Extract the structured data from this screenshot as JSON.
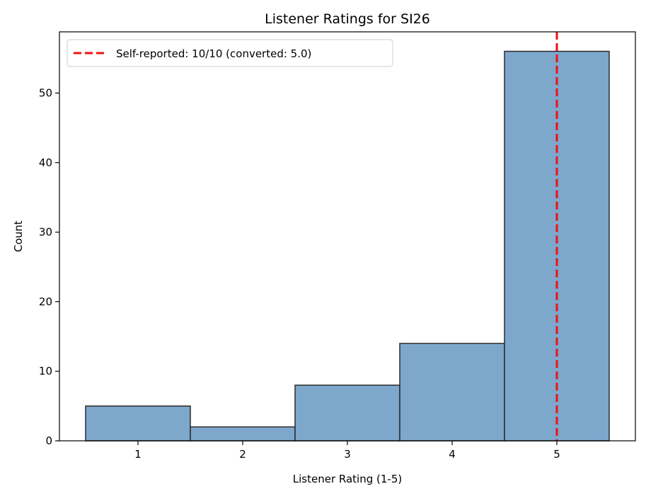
{
  "chart_data": {
    "type": "bar",
    "title": "Listener Ratings for SI26",
    "xlabel": "Listener Rating (1-5)",
    "ylabel": "Count",
    "categories": [
      1,
      2,
      3,
      4,
      5
    ],
    "values": [
      5,
      2,
      8,
      14,
      56
    ],
    "xlim": [
      0.25,
      5.75
    ],
    "ylim": [
      0,
      58.8
    ],
    "xticks": [
      "1",
      "2",
      "3",
      "4",
      "5"
    ],
    "yticks": [
      "0",
      "10",
      "20",
      "30",
      "40",
      "50"
    ],
    "bar_color": "#7ea7cc",
    "bar_edge_color": "#2b2b2b",
    "grid": false,
    "reference_line": {
      "x": 5,
      "label": "Self-reported: 10/10 (converted: 5.0)",
      "color": "#ee1111",
      "style": "dashed"
    },
    "legend_position": "top-left"
  }
}
